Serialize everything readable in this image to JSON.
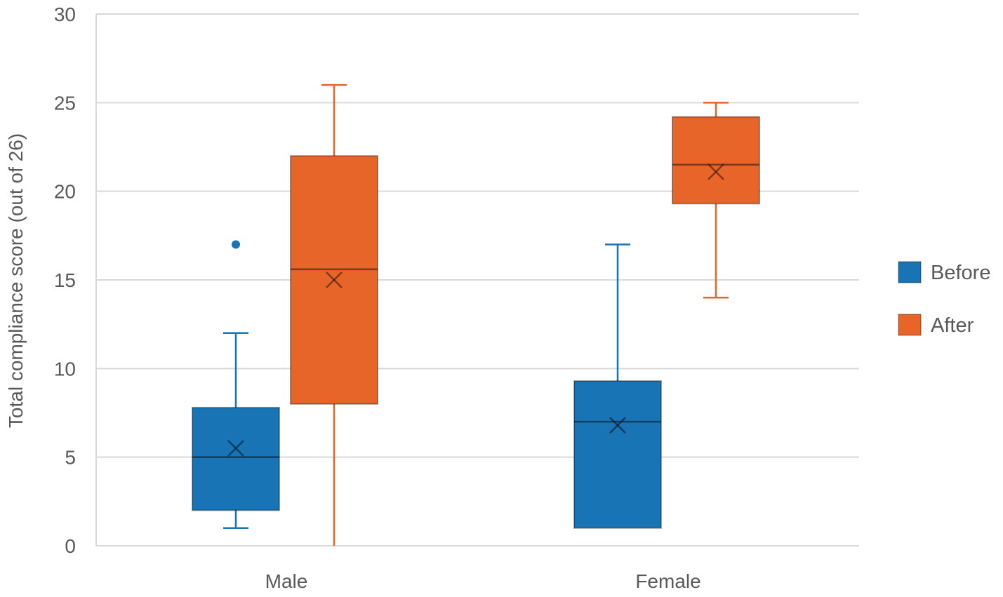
{
  "chart_data": {
    "type": "box",
    "title": "",
    "xlabel": "",
    "ylabel": "Total compliance score (out of 26)",
    "ylim": [
      0,
      30
    ],
    "yticks": [
      0,
      5,
      10,
      15,
      20,
      25,
      30
    ],
    "grid": true,
    "legend_position": "right",
    "categories": [
      "Male",
      "Female"
    ],
    "series": [
      {
        "name": "Before",
        "color": "#1874b4",
        "boxes": [
          {
            "category": "Male",
            "min": 1,
            "q1": 2,
            "median": 5,
            "q3": 7.8,
            "max": 12,
            "mean": 5.5,
            "outliers": [
              17
            ]
          },
          {
            "category": "Female",
            "min": 1,
            "q1": 1,
            "median": 7,
            "q3": 9.3,
            "max": 17,
            "mean": 6.8,
            "outliers": []
          }
        ]
      },
      {
        "name": "After",
        "color": "#e8652a",
        "boxes": [
          {
            "category": "Male",
            "min": 0,
            "q1": 8,
            "median": 15.6,
            "q3": 22,
            "max": 26,
            "mean": 15,
            "outliers": []
          },
          {
            "category": "Female",
            "min": 14,
            "q1": 19.3,
            "median": 21.5,
            "q3": 24.2,
            "max": 25,
            "mean": 21.1,
            "outliers": []
          }
        ]
      }
    ]
  }
}
